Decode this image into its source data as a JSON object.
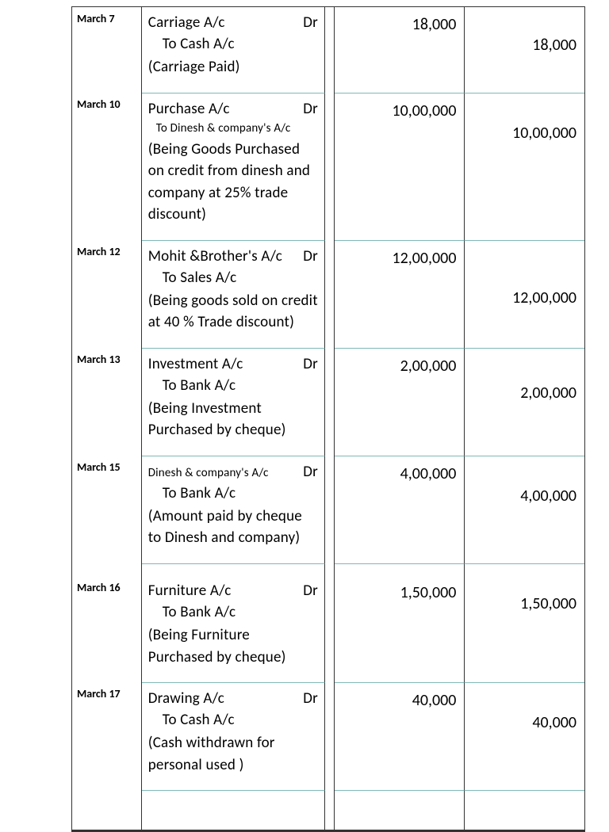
{
  "entries": [
    {
      "date": "March 7",
      "dr_account": "Carriage A/c",
      "cr_account": "To Cash A/c",
      "narration": "(Carriage Paid)",
      "debit": "18,000",
      "credit": "18,000",
      "topBorder": false,
      "smallCredit": false,
      "credit_margin": "28px"
    },
    {
      "date": "March 10",
      "dr_account": "Purchase A/c",
      "cr_account": "To Dinesh & company's A/c",
      "narration": "(Being Goods Purchased on credit from dinesh and company at 25% trade discount)",
      "debit": "10,00,000",
      "credit": "10,00,000",
      "topBorder": true,
      "smallCredit": true,
      "credit_margin": "30px"
    },
    {
      "date": "March 12",
      "dr_account": "Mohit &Brother's A/c",
      "cr_account": "To Sales  A/c",
      "narration": "(Being goods sold on credit at 40 % Trade discount)",
      "debit": "12,00,000",
      "credit": "12,00,000",
      "topBorder": true,
      "smallCredit": false,
      "credit_margin": "52px"
    },
    {
      "date": "March 13",
      "dr_account": "Investment  A/c",
      "cr_account": "To Bank A/c",
      "narration": "(Being Investment Purchased by cheque)",
      "debit": "2,00,000",
      "credit": "2,00,000",
      "topBorder": true,
      "smallCredit": false,
      "credit_margin": "36px"
    },
    {
      "date": "March 15",
      "dr_account": "Dinesh & company's A/c",
      "dr_small": true,
      "cr_account": "To Bank A/c",
      "narration": "(Amount paid by cheque to Dinesh and company)",
      "debit": "4,00,000",
      "credit": "4,00,000",
      "topBorder": true,
      "smallCredit": false,
      "credit_margin": "30px"
    },
    {
      "date": "March 16",
      "dr_account": "Furniture  A/c",
      "cr_account": "To Bank A/c",
      "narration": " (Being Furniture Purchased by cheque)",
      "debit": "1,50,000",
      "credit": "1,50,000",
      "topBorder": true,
      "smallCredit": false,
      "credit_margin": "30px",
      "extra_top_pad": true
    },
    {
      "date": "March 17",
      "dr_account": "Drawing  A/c",
      "cr_account": "To Cash A/c",
      "narration": "(Cash withdrawn for personal used  )",
      "debit": "40,000",
      "credit": "40,000",
      "topBorder": true,
      "smallCredit": false,
      "credit_margin": "30px"
    }
  ],
  "dr_label": "Dr"
}
